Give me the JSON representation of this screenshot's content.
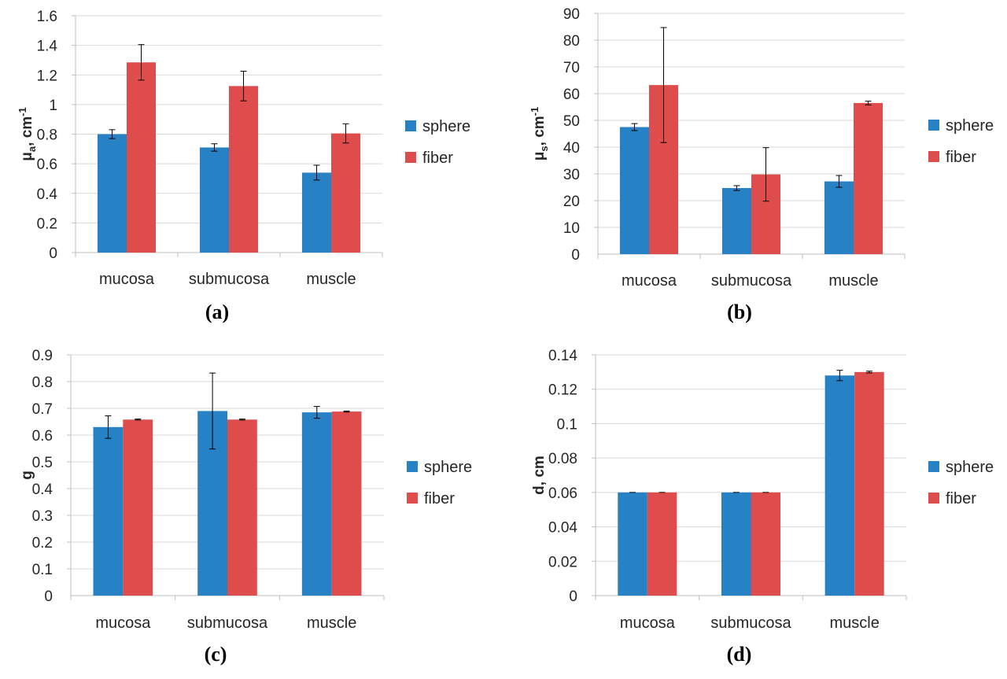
{
  "colors": {
    "sphere": "#2681C5",
    "fiber": "#DE4D4B",
    "grid": "#D9D9D9",
    "axis": "#BFBFBF",
    "error": "#000000"
  },
  "chart_data": [
    {
      "type": "bar",
      "panel_label": "(a)",
      "categories": [
        "mucosa",
        "submucosa",
        "muscle"
      ],
      "ylabel": "μa, cm-1",
      "ylabel_parts": {
        "main": "μ",
        "sub": "a",
        "rest": ", cm",
        "sup": "-1"
      },
      "ylim": [
        0,
        1.6
      ],
      "yticks": [
        "0",
        "0.2",
        "0.4",
        "0.6",
        "0.8",
        "1",
        "1.2",
        "1.4",
        "1.6"
      ],
      "grid": true,
      "legend_position": "right",
      "series": [
        {
          "name": "sphere",
          "values": [
            0.8,
            0.71,
            0.54
          ],
          "errors": [
            0.03,
            0.025,
            0.05
          ]
        },
        {
          "name": "fiber",
          "values": [
            1.285,
            1.125,
            0.805
          ],
          "errors": [
            0.12,
            0.1,
            0.065
          ]
        }
      ]
    },
    {
      "type": "bar",
      "panel_label": "(b)",
      "categories": [
        "mucosa",
        "submucosa",
        "muscle"
      ],
      "ylabel": "μs, cm-1",
      "ylabel_parts": {
        "main": "μ",
        "sub": "s",
        "rest": ", cm",
        "sup": "-1"
      },
      "ylim": [
        0,
        90
      ],
      "yticks": [
        "0",
        "10",
        "20",
        "30",
        "40",
        "50",
        "60",
        "70",
        "80",
        "90"
      ],
      "grid": true,
      "legend_position": "right",
      "series": [
        {
          "name": "sphere",
          "values": [
            47.5,
            24.7,
            27.2
          ],
          "errors": [
            1.3,
            0.9,
            2.2
          ]
        },
        {
          "name": "fiber",
          "values": [
            63.2,
            29.8,
            56.5
          ],
          "errors": [
            21.5,
            10.0,
            0.7
          ]
        }
      ]
    },
    {
      "type": "bar",
      "panel_label": "(c)",
      "categories": [
        "mucosa",
        "submucosa",
        "muscle"
      ],
      "ylabel": "g",
      "ylabel_parts": {
        "main": "g",
        "sub": "",
        "rest": "",
        "sup": ""
      },
      "ylim": [
        0,
        0.9
      ],
      "yticks": [
        "0",
        "0.1",
        "0.2",
        "0.3",
        "0.4",
        "0.5",
        "0.6",
        "0.7",
        "0.8",
        "0.9"
      ],
      "grid": true,
      "legend_position": "right",
      "series": [
        {
          "name": "sphere",
          "values": [
            0.63,
            0.69,
            0.685
          ],
          "errors": [
            0.042,
            0.142,
            0.022
          ]
        },
        {
          "name": "fiber",
          "values": [
            0.658,
            0.658,
            0.688
          ],
          "errors": [
            0.002,
            0.002,
            0.002
          ]
        }
      ]
    },
    {
      "type": "bar",
      "panel_label": "(d)",
      "categories": [
        "mucosa",
        "submucosa",
        "muscle"
      ],
      "ylabel": "d, cm",
      "ylabel_parts": {
        "main": "d, cm",
        "sub": "",
        "rest": "",
        "sup": ""
      },
      "ylim": [
        0,
        0.14
      ],
      "yticks": [
        "0",
        "0.02",
        "0.04",
        "0.06",
        "0.08",
        "0.1",
        "0.12",
        "0.14"
      ],
      "grid": true,
      "legend_position": "right",
      "series": [
        {
          "name": "sphere",
          "values": [
            0.06,
            0.06,
            0.128
          ],
          "errors": [
            0.0,
            0.0,
            0.003
          ]
        },
        {
          "name": "fiber",
          "values": [
            0.06,
            0.06,
            0.13
          ],
          "errors": [
            0.0,
            0.0,
            0.0005
          ]
        }
      ]
    }
  ]
}
